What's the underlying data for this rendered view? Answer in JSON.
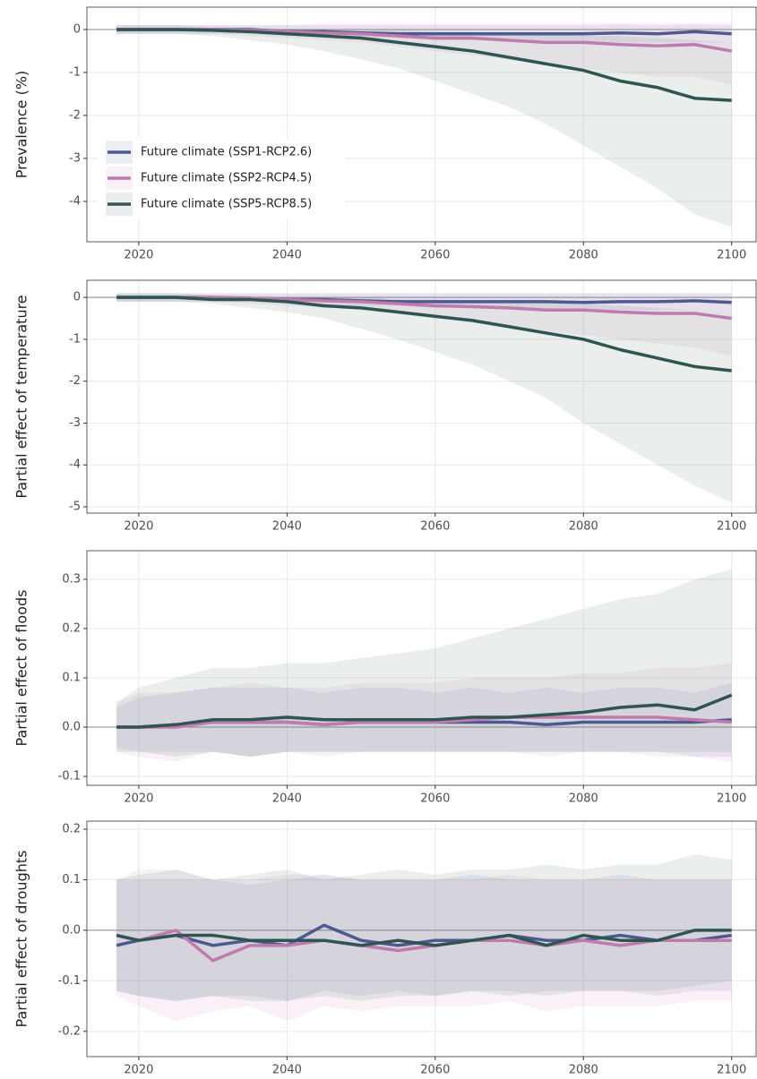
{
  "chart_data": [
    {
      "type": "line",
      "y_label": "Prevalence (%)",
      "legend": "inside-left",
      "hline": 0,
      "x": [
        2017,
        2020,
        2025,
        2030,
        2035,
        2040,
        2045,
        2050,
        2055,
        2060,
        2065,
        2070,
        2075,
        2080,
        2085,
        2090,
        2095,
        2100
      ],
      "xlim": [
        2013,
        2103.3
      ],
      "xticks": [
        2020,
        2040,
        2060,
        2080,
        2100
      ],
      "ylim": [
        -4.94,
        0.52
      ],
      "yticks": [
        0,
        -1,
        -2,
        -3,
        -4
      ],
      "grid": true,
      "series": [
        {
          "name": "Future climate (SSP1-RCP2.6)",
          "color": "#4d5a8f",
          "values": [
            0,
            0,
            0,
            0,
            0,
            -0.05,
            -0.05,
            -0.08,
            -0.1,
            -0.1,
            -0.1,
            -0.1,
            -0.1,
            -0.1,
            -0.08,
            -0.1,
            -0.05,
            -0.1
          ],
          "band_lower": [
            -0.1,
            -0.1,
            -0.1,
            -0.1,
            -0.1,
            -0.15,
            -0.15,
            -0.2,
            -0.2,
            -0.25,
            -0.25,
            -0.25,
            -0.25,
            -0.3,
            -0.3,
            -0.3,
            -0.3,
            -0.3
          ],
          "band_upper": [
            0.1,
            0.1,
            0.1,
            0.1,
            0.1,
            0.1,
            0.1,
            0.1,
            0.1,
            0.1,
            0.1,
            0.1,
            0.1,
            0.1,
            0.12,
            0.1,
            0.12,
            0.1
          ]
        },
        {
          "name": "Future climate (SSP2-RCP4.5)",
          "color": "#c07aae",
          "values": [
            0,
            0,
            0,
            0,
            -0.02,
            -0.05,
            -0.08,
            -0.1,
            -0.15,
            -0.2,
            -0.2,
            -0.25,
            -0.3,
            -0.3,
            -0.35,
            -0.38,
            -0.35,
            -0.5
          ],
          "band_lower": [
            -0.1,
            -0.1,
            -0.1,
            -0.1,
            -0.15,
            -0.2,
            -0.25,
            -0.3,
            -0.4,
            -0.5,
            -0.6,
            -0.7,
            -0.8,
            -0.9,
            -1.0,
            -1.1,
            -1.1,
            -1.3
          ],
          "band_upper": [
            0.1,
            0.1,
            0.1,
            0.1,
            0.1,
            0.1,
            0.15,
            0.15,
            0.15,
            0.15,
            0.15,
            0.15,
            0.15,
            0.15,
            0.15,
            0.15,
            0.15,
            0.15
          ]
        },
        {
          "name": "Future climate (SSP5-RCP8.5)",
          "color": "#2f5553",
          "values": [
            0,
            0,
            0,
            -0.02,
            -0.05,
            -0.1,
            -0.15,
            -0.2,
            -0.3,
            -0.4,
            -0.5,
            -0.65,
            -0.8,
            -0.95,
            -1.2,
            -1.35,
            -1.6,
            -1.65
          ],
          "band_lower": [
            -0.1,
            -0.1,
            -0.1,
            -0.15,
            -0.25,
            -0.35,
            -0.5,
            -0.7,
            -0.9,
            -1.2,
            -1.5,
            -1.8,
            -2.2,
            -2.7,
            -3.2,
            -3.7,
            -4.3,
            -4.6
          ],
          "band_upper": [
            0.1,
            0.1,
            0.1,
            0.05,
            0.05,
            0,
            0,
            0,
            0,
            -0.05,
            -0.05,
            -0.1,
            -0.1,
            -0.15,
            -0.15,
            -0.2,
            -0.25,
            -0.3
          ]
        }
      ]
    },
    {
      "type": "line",
      "y_label": "Partial effect of temperature",
      "hline": 0,
      "x": [
        2017,
        2020,
        2025,
        2030,
        2035,
        2040,
        2045,
        2050,
        2055,
        2060,
        2065,
        2070,
        2075,
        2080,
        2085,
        2090,
        2095,
        2100
      ],
      "xlim": [
        2013,
        2103.3
      ],
      "xticks": [
        2020,
        2040,
        2060,
        2080,
        2100
      ],
      "ylim": [
        -5.15,
        0.41
      ],
      "yticks": [
        0,
        -1,
        -2,
        -3,
        -4,
        -5
      ],
      "grid": true,
      "series": [
        {
          "color": "#4d5a8f",
          "values": [
            0,
            0,
            0,
            0,
            -0.02,
            -0.05,
            -0.05,
            -0.08,
            -0.1,
            -0.1,
            -0.1,
            -0.1,
            -0.1,
            -0.12,
            -0.1,
            -0.1,
            -0.08,
            -0.12
          ],
          "band_lower": [
            -0.1,
            -0.1,
            -0.1,
            -0.1,
            -0.1,
            -0.15,
            -0.15,
            -0.2,
            -0.2,
            -0.25,
            -0.25,
            -0.25,
            -0.3,
            -0.3,
            -0.3,
            -0.3,
            -0.3,
            -0.35
          ],
          "band_upper": [
            0.1,
            0.1,
            0.1,
            0.1,
            0.1,
            0.1,
            0.1,
            0.1,
            0.1,
            0.1,
            0.1,
            0.1,
            0.1,
            0.1,
            0.1,
            0.1,
            0.1,
            0.1
          ]
        },
        {
          "color": "#c07aae",
          "values": [
            0,
            0,
            0,
            0,
            -0.02,
            -0.05,
            -0.08,
            -0.1,
            -0.15,
            -0.2,
            -0.22,
            -0.25,
            -0.3,
            -0.3,
            -0.35,
            -0.38,
            -0.38,
            -0.5
          ],
          "band_lower": [
            -0.1,
            -0.1,
            -0.1,
            -0.1,
            -0.15,
            -0.2,
            -0.25,
            -0.3,
            -0.4,
            -0.5,
            -0.6,
            -0.7,
            -0.8,
            -0.9,
            -1.0,
            -1.1,
            -1.2,
            -1.4
          ],
          "band_upper": [
            0.1,
            0.1,
            0.1,
            0.1,
            0.1,
            0.1,
            0.1,
            0.1,
            0.1,
            0.1,
            0.1,
            0.1,
            0.1,
            0.1,
            0.1,
            0.1,
            0.1,
            0.1
          ]
        },
        {
          "color": "#2f5553",
          "values": [
            0,
            0,
            0,
            -0.05,
            -0.05,
            -0.1,
            -0.2,
            -0.25,
            -0.35,
            -0.45,
            -0.55,
            -0.7,
            -0.85,
            -1.0,
            -1.25,
            -1.45,
            -1.65,
            -1.75
          ],
          "band_lower": [
            -0.1,
            -0.1,
            -0.1,
            -0.15,
            -0.25,
            -0.35,
            -0.5,
            -0.75,
            -1.0,
            -1.3,
            -1.6,
            -2.0,
            -2.4,
            -3.0,
            -3.5,
            -4.0,
            -4.5,
            -4.9
          ],
          "band_upper": [
            0.1,
            0.1,
            0.1,
            0.05,
            0.05,
            0,
            0,
            0,
            -0.05,
            -0.05,
            -0.1,
            -0.1,
            -0.15,
            -0.15,
            -0.2,
            -0.25,
            -0.3,
            -0.35
          ]
        }
      ]
    },
    {
      "type": "line",
      "y_label": "Partial effect of floods",
      "hline": 0,
      "x": [
        2017,
        2020,
        2025,
        2030,
        2035,
        2040,
        2045,
        2050,
        2055,
        2060,
        2065,
        2070,
        2075,
        2080,
        2085,
        2090,
        2095,
        2100
      ],
      "xlim": [
        2013,
        2103.3
      ],
      "xticks": [
        2020,
        2040,
        2060,
        2080,
        2100
      ],
      "ylim": [
        -0.118,
        0.358
      ],
      "yticks": [
        -0.1,
        {
          "value": 0,
          "label": "0.0"
        },
        0.1,
        0.2,
        0.3
      ],
      "grid": true,
      "series": [
        {
          "color": "#4d5a8f",
          "values": [
            0,
            0,
            0.005,
            0.01,
            0.01,
            0.01,
            0.005,
            0.01,
            0.01,
            0.01,
            0.01,
            0.01,
            0.005,
            0.01,
            0.01,
            0.01,
            0.01,
            0.015
          ],
          "band_lower": [
            -0.04,
            -0.05,
            -0.05,
            -0.05,
            -0.06,
            -0.05,
            -0.05,
            -0.05,
            -0.05,
            -0.05,
            -0.05,
            -0.05,
            -0.05,
            -0.05,
            -0.05,
            -0.05,
            -0.06,
            -0.06
          ],
          "band_upper": [
            0.04,
            0.06,
            0.07,
            0.08,
            0.08,
            0.08,
            0.07,
            0.08,
            0.08,
            0.07,
            0.08,
            0.07,
            0.08,
            0.07,
            0.08,
            0.08,
            0.07,
            0.09
          ]
        },
        {
          "color": "#c07aae",
          "values": [
            0,
            0,
            0,
            0.01,
            0.01,
            0.01,
            0.005,
            0.01,
            0.01,
            0.01,
            0.015,
            0.02,
            0.02,
            0.02,
            0.02,
            0.02,
            0.015,
            0.01
          ],
          "band_lower": [
            -0.05,
            -0.06,
            -0.07,
            -0.05,
            -0.06,
            -0.05,
            -0.06,
            -0.05,
            -0.05,
            -0.05,
            -0.05,
            -0.05,
            -0.06,
            -0.05,
            -0.05,
            -0.06,
            -0.06,
            -0.07
          ],
          "band_upper": [
            0.05,
            0.07,
            0.07,
            0.08,
            0.09,
            0.08,
            0.08,
            0.09,
            0.09,
            0.09,
            0.1,
            0.1,
            0.1,
            0.11,
            0.11,
            0.12,
            0.12,
            0.13
          ]
        },
        {
          "color": "#2f5553",
          "values": [
            0,
            0,
            0.005,
            0.015,
            0.015,
            0.02,
            0.015,
            0.015,
            0.015,
            0.015,
            0.02,
            0.02,
            0.025,
            0.03,
            0.04,
            0.045,
            0.035,
            0.065
          ],
          "band_lower": [
            -0.05,
            -0.05,
            -0.06,
            -0.05,
            -0.06,
            -0.05,
            -0.05,
            -0.05,
            -0.05,
            -0.05,
            -0.05,
            -0.05,
            -0.05,
            -0.05,
            -0.05,
            -0.05,
            -0.05,
            -0.05
          ],
          "band_upper": [
            0.05,
            0.08,
            0.1,
            0.12,
            0.12,
            0.13,
            0.13,
            0.14,
            0.15,
            0.16,
            0.18,
            0.2,
            0.22,
            0.24,
            0.26,
            0.27,
            0.3,
            0.32
          ]
        }
      ]
    },
    {
      "type": "line",
      "y_label": "Partial effect of droughts",
      "hline": 0,
      "x": [
        2017,
        2020,
        2025,
        2030,
        2035,
        2040,
        2045,
        2050,
        2055,
        2060,
        2065,
        2070,
        2075,
        2080,
        2085,
        2090,
        2095,
        2100
      ],
      "xlim": [
        2013,
        2103.3
      ],
      "xticks": [
        2020,
        2040,
        2060,
        2080,
        2100
      ],
      "ylim": [
        -0.25,
        0.216
      ],
      "yticks": [
        -0.2,
        -0.1,
        {
          "value": 0,
          "label": "0.0"
        },
        0.1,
        0.2
      ],
      "grid": true,
      "series": [
        {
          "color": "#4d5a8f",
          "values": [
            -0.03,
            -0.02,
            -0.01,
            -0.03,
            -0.02,
            -0.03,
            0.01,
            -0.02,
            -0.03,
            -0.02,
            -0.02,
            -0.01,
            -0.02,
            -0.02,
            -0.01,
            -0.02,
            -0.02,
            -0.01
          ],
          "band_lower": [
            -0.12,
            -0.13,
            -0.14,
            -0.13,
            -0.13,
            -0.14,
            -0.12,
            -0.13,
            -0.12,
            -0.13,
            -0.12,
            -0.12,
            -0.13,
            -0.12,
            -0.12,
            -0.13,
            -0.12,
            -0.12
          ],
          "band_upper": [
            0.1,
            0.1,
            0.1,
            0.1,
            0.09,
            0.1,
            0.11,
            0.1,
            0.1,
            0.1,
            0.11,
            0.1,
            0.1,
            0.1,
            0.11,
            0.1,
            0.1,
            0.1
          ]
        },
        {
          "color": "#c07aae",
          "values": [
            -0.01,
            -0.02,
            0,
            -0.06,
            -0.03,
            -0.03,
            -0.02,
            -0.03,
            -0.04,
            -0.03,
            -0.02,
            -0.02,
            -0.03,
            -0.02,
            -0.03,
            -0.02,
            -0.02,
            -0.02
          ],
          "band_lower": [
            -0.13,
            -0.15,
            -0.18,
            -0.16,
            -0.15,
            -0.18,
            -0.15,
            -0.16,
            -0.15,
            -0.15,
            -0.15,
            -0.14,
            -0.16,
            -0.15,
            -0.15,
            -0.15,
            -0.14,
            -0.14
          ],
          "band_upper": [
            0.1,
            0.12,
            0.12,
            0.1,
            0.1,
            0.11,
            0.11,
            0.1,
            0.1,
            0.1,
            0.1,
            0.11,
            0.1,
            0.1,
            0.1,
            0.1,
            0.1,
            0.1
          ]
        },
        {
          "color": "#2f5553",
          "values": [
            -0.01,
            -0.02,
            -0.01,
            -0.01,
            -0.02,
            -0.02,
            -0.02,
            -0.03,
            -0.02,
            -0.03,
            -0.02,
            -0.01,
            -0.03,
            -0.01,
            -0.02,
            -0.02,
            0,
            0
          ],
          "band_lower": [
            -0.12,
            -0.13,
            -0.14,
            -0.13,
            -0.14,
            -0.14,
            -0.13,
            -0.14,
            -0.13,
            -0.13,
            -0.12,
            -0.13,
            -0.12,
            -0.12,
            -0.12,
            -0.12,
            -0.11,
            -0.1
          ],
          "band_upper": [
            0.1,
            0.11,
            0.12,
            0.1,
            0.11,
            0.12,
            0.1,
            0.11,
            0.12,
            0.11,
            0.12,
            0.12,
            0.13,
            0.12,
            0.13,
            0.13,
            0.15,
            0.14
          ]
        }
      ]
    }
  ]
}
